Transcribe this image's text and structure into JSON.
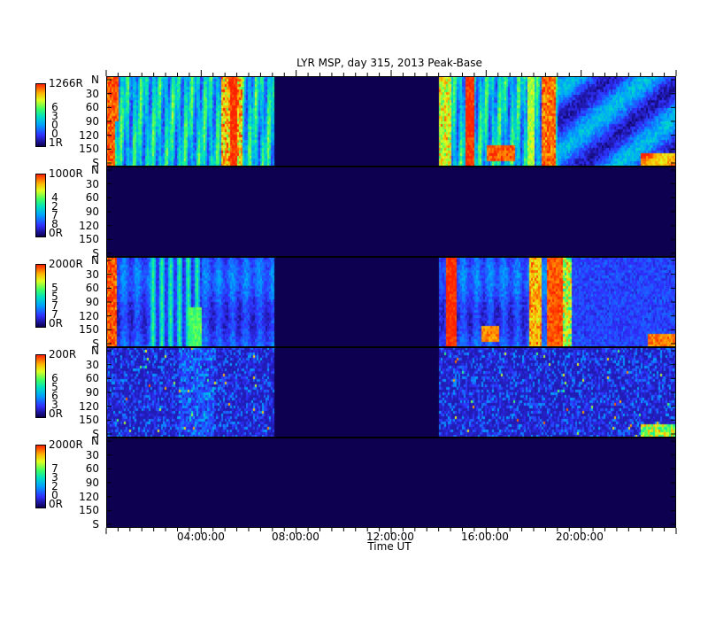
{
  "chart_data": {
    "type": "heatmap",
    "title": "LYR MSP, day 315, 2013 Peak-Base",
    "xlabel": "Time UT",
    "x_range_hours": [
      0,
      24
    ],
    "x_ticks": [
      "04:00:00",
      "08:00:00",
      "12:00:00",
      "16:00:00",
      "20:00:00"
    ],
    "y_ticks": [
      "N",
      "30",
      "60",
      "90",
      "120",
      "150",
      "S"
    ],
    "panels": [
      {
        "scale_max": "1266R",
        "scale_min": "1R",
        "digits": [
          "6",
          "3",
          "0",
          "0"
        ],
        "no_data": false
      },
      {
        "scale_max": "1000R",
        "scale_min": "0R",
        "digits": [
          "4",
          "2",
          "7",
          "8"
        ],
        "no_data": true
      },
      {
        "scale_max": "2000R",
        "scale_min": "0R",
        "digits": [
          "5",
          "5",
          "7",
          "7"
        ],
        "no_data": false
      },
      {
        "scale_max": "200R",
        "scale_min": "0R",
        "digits": [
          "6",
          "5",
          "6",
          "3"
        ],
        "no_data": false
      },
      {
        "scale_max": "2000R",
        "scale_min": "0R",
        "digits": [
          "7",
          "3",
          "2",
          "0"
        ],
        "no_data": true
      }
    ],
    "data_gap_hours": [
      7.05,
      13.95
    ]
  }
}
